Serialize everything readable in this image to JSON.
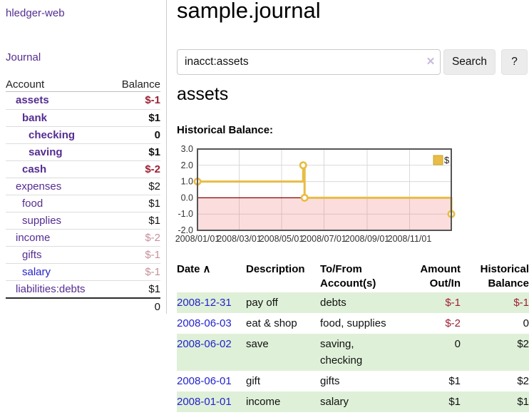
{
  "colors": {
    "link_purple": "#542d91",
    "link_blue": "#2323cc",
    "neg_strong": "#9d1f33",
    "neg_soft": "#c98f9b",
    "row_green": "#dff0d8",
    "clear_x": "#c7badb",
    "button_bg": "#ececec",
    "border_gray": "#cccccc",
    "chart_line": "#e8bc45",
    "chart_zero_line": "#8b0000",
    "chart_negative_fill": "rgba(240,100,100,0.22)",
    "chart_border": "#555555",
    "chart_grid": "#d9d9d9",
    "legend_swatch_border": "#c9a62f"
  },
  "sidebar": {
    "app_title": "hledger-web",
    "nav": {
      "journal": "Journal"
    },
    "table": {
      "account_header": "Account",
      "balance_header": "Balance",
      "total": "0"
    },
    "accounts": [
      {
        "name": "assets",
        "depth": 1,
        "bold": true,
        "balance": "$-1"
      },
      {
        "name": "bank",
        "depth": 2,
        "bold": true,
        "balance": "$1"
      },
      {
        "name": "checking",
        "depth": 3,
        "bold": true,
        "balance": "0"
      },
      {
        "name": "saving",
        "depth": 3,
        "bold": true,
        "balance": "$1"
      },
      {
        "name": "cash",
        "depth": 2,
        "bold": true,
        "balance": "$-2"
      },
      {
        "name": "expenses",
        "depth": 1,
        "bold": false,
        "balance": "$2"
      },
      {
        "name": "food",
        "depth": 2,
        "bold": false,
        "balance": "$1"
      },
      {
        "name": "supplies",
        "depth": 2,
        "bold": false,
        "balance": "$1"
      },
      {
        "name": "income",
        "depth": 1,
        "bold": false,
        "balance": "$-2"
      },
      {
        "name": "gifts",
        "depth": 2,
        "bold": false,
        "balance": "$-1"
      },
      {
        "name": "salary",
        "depth": 2,
        "bold": false,
        "balance": "$-1",
        "blue_link": true
      },
      {
        "name": "liabilities:debts",
        "depth": 1,
        "bold": false,
        "balance": "$1"
      }
    ]
  },
  "main": {
    "title": "sample.journal",
    "search": {
      "query": "inacct:assets",
      "clear_icon": "✕",
      "search_label": "Search",
      "help_label": "?"
    },
    "section_title": "assets",
    "balance_label": "Historical Balance:"
  },
  "chart_data": {
    "type": "line",
    "title": "Historical Balance",
    "legend": [
      {
        "label": "$"
      }
    ],
    "legend_position": "top-right",
    "grid": true,
    "ylim": [
      -2,
      3
    ],
    "yticks": [
      {
        "v": 3,
        "label": "3.0"
      },
      {
        "v": 2,
        "label": "2.0"
      },
      {
        "v": 1,
        "label": "1.0"
      },
      {
        "v": 0,
        "label": "0.0"
      },
      {
        "v": -1,
        "label": "-1.0"
      },
      {
        "v": -2,
        "label": "-2.0"
      }
    ],
    "x_domain_days": [
      0,
      365
    ],
    "xticks": [
      {
        "d": 0,
        "label": "2008/01/01"
      },
      {
        "d": 60,
        "label": "2008/03/01"
      },
      {
        "d": 121,
        "label": "2008/05/01"
      },
      {
        "d": 182,
        "label": "2008/07/01"
      },
      {
        "d": 244,
        "label": "2008/09/01"
      },
      {
        "d": 305,
        "label": "2008/11/01"
      }
    ],
    "series": [
      {
        "name": "$",
        "points": [
          [
            0,
            1
          ],
          [
            152,
            1
          ],
          [
            152,
            2
          ],
          [
            154,
            2
          ],
          [
            154,
            0
          ],
          [
            365,
            0
          ],
          [
            365,
            -1
          ]
        ],
        "markers": [
          [
            0,
            1
          ],
          [
            152,
            2
          ],
          [
            154,
            0
          ],
          [
            365,
            -1
          ]
        ]
      }
    ],
    "negative_region_shaded": true
  },
  "transactions": {
    "headers": [
      {
        "label": "Date",
        "sort_icon": "∧",
        "align": "left"
      },
      {
        "label": "Description",
        "align": "left"
      },
      {
        "label": "To/From Account(s)",
        "align": "left",
        "wrap": true
      },
      {
        "label": "Amount Out/In",
        "align": "right"
      },
      {
        "label": "Historical Balance",
        "align": "right"
      }
    ],
    "rows": [
      {
        "date": "2008-12-31",
        "description": "pay off",
        "accounts": "debts",
        "amount": "$-1",
        "balance": "$-1"
      },
      {
        "date": "2008-06-03",
        "description": "eat & shop",
        "accounts": "food, supplies",
        "amount": "$-2",
        "balance": "0"
      },
      {
        "date": "2008-06-02",
        "description": "save",
        "accounts": "saving, checking",
        "amount": "0",
        "balance": "$2"
      },
      {
        "date": "2008-06-01",
        "description": "gift",
        "accounts": "gifts",
        "amount": "$1",
        "balance": "$2"
      },
      {
        "date": "2008-01-01",
        "description": "income",
        "accounts": "salary",
        "amount": "$1",
        "balance": "$1"
      }
    ]
  }
}
